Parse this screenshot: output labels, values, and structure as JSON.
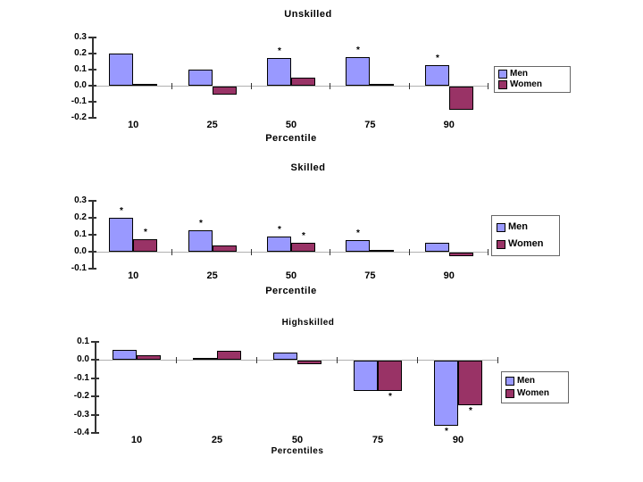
{
  "page": {
    "background": "#ffffff",
    "text_color": "#000000"
  },
  "significance_marker": "*",
  "colors": {
    "men": "#9999ff",
    "women": "#993366",
    "bar_border": "#000000",
    "axis_line": "#333333",
    "zero_line": "#b0b0b0"
  },
  "chart_data": [
    {
      "type": "bar",
      "title": "Unskilled",
      "xlabel": "Percentile",
      "categories": [
        "10",
        "25",
        "50",
        "75",
        "90"
      ],
      "ylim": [
        -0.2,
        0.3
      ],
      "yticks": [
        "0.3",
        "0.2",
        "0.1",
        "0.0",
        "-0.1",
        "-0.2"
      ],
      "grid": false,
      "legend_position": "right",
      "series": [
        {
          "name": "Men",
          "color": "#9999ff",
          "values": [
            0.2,
            0.1,
            0.175,
            0.18,
            0.13
          ],
          "significant": [
            false,
            false,
            true,
            true,
            true
          ]
        },
        {
          "name": "Women",
          "color": "#993366",
          "values": [
            0.005,
            -0.05,
            0.05,
            0.005,
            -0.145
          ],
          "significant": [
            false,
            false,
            false,
            false,
            false
          ]
        }
      ]
    },
    {
      "type": "bar",
      "title": "Skilled",
      "xlabel": "Percentile",
      "categories": [
        "10",
        "25",
        "50",
        "75",
        "90"
      ],
      "ylim": [
        -0.1,
        0.3
      ],
      "yticks": [
        "0.3",
        "0.2",
        "0.1",
        "0.0",
        "-0.1"
      ],
      "grid": false,
      "legend_position": "right",
      "series": [
        {
          "name": "Men",
          "color": "#9999ff",
          "values": [
            0.2,
            0.125,
            0.09,
            0.07,
            0.055
          ],
          "significant": [
            true,
            true,
            true,
            true,
            false
          ]
        },
        {
          "name": "Women",
          "color": "#993366",
          "values": [
            0.075,
            0.035,
            0.055,
            0.005,
            -0.02
          ],
          "significant": [
            true,
            false,
            true,
            false,
            false
          ]
        }
      ]
    },
    {
      "type": "bar",
      "title": "Highskilled",
      "xlabel": "Percentiles",
      "categories": [
        "10",
        "25",
        "50",
        "75",
        "90"
      ],
      "ylim": [
        -0.4,
        0.1
      ],
      "yticks": [
        "0.1",
        "0.0",
        "-0.1",
        "-0.2",
        "-0.3",
        "-0.4"
      ],
      "grid": false,
      "legend_position": "right",
      "series": [
        {
          "name": "Men",
          "color": "#9999ff",
          "values": [
            0.055,
            0.01,
            0.04,
            -0.165,
            -0.36
          ],
          "significant": [
            false,
            false,
            false,
            false,
            true
          ]
        },
        {
          "name": "Women",
          "color": "#993366",
          "values": [
            0.025,
            0.05,
            -0.02,
            -0.165,
            -0.245
          ],
          "significant": [
            false,
            false,
            false,
            true,
            true
          ]
        }
      ]
    }
  ]
}
